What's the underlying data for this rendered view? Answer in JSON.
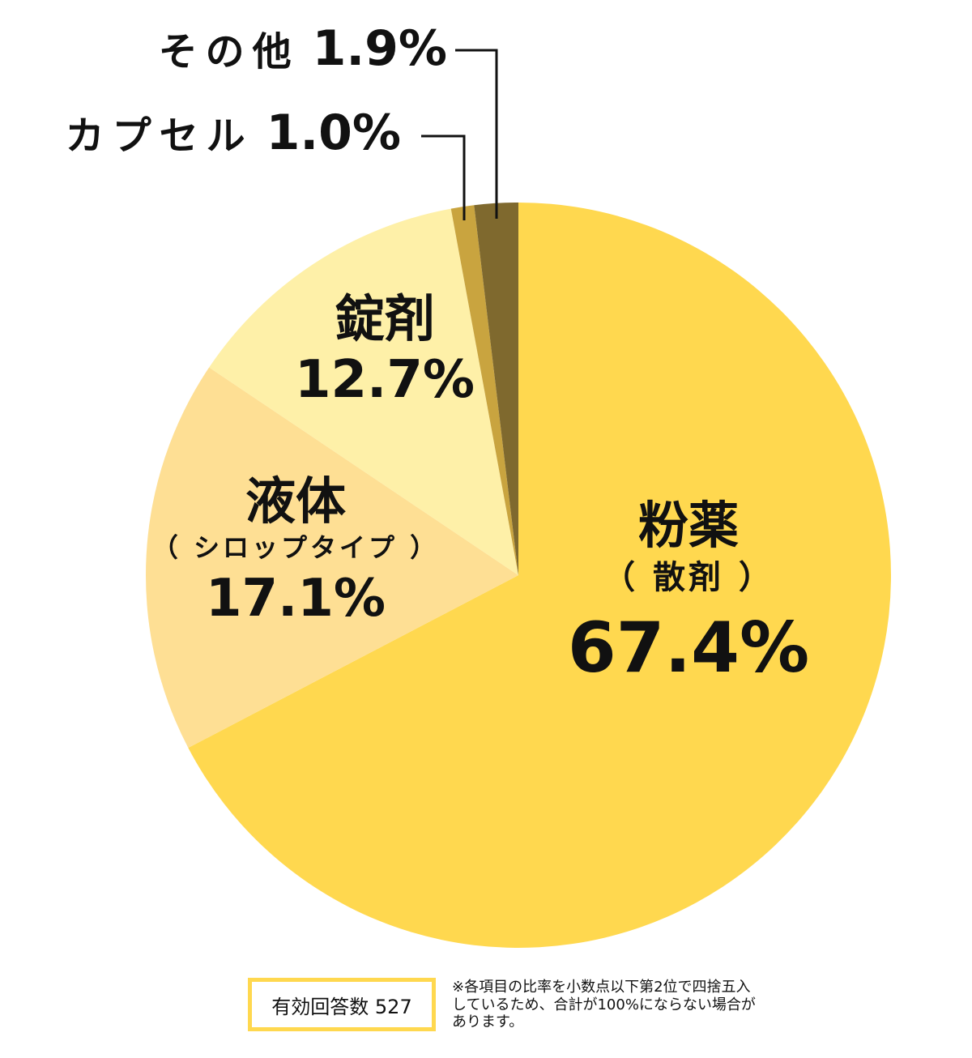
{
  "chart_data": {
    "type": "pie",
    "start": "top",
    "direction": "clockwise",
    "slices": [
      {
        "name": "粉薬",
        "sub": "（ 散剤 ）",
        "value": 67.4,
        "label": "67.4%",
        "color": "#FFD84F"
      },
      {
        "name": "液体",
        "sub": "（ シロップタイプ ）",
        "value": 17.1,
        "label": "17.1%",
        "color": "#FEDF94"
      },
      {
        "name": "錠剤",
        "value": 12.7,
        "label": "12.7%",
        "color": "#FEF0A8"
      },
      {
        "name": "カプセル",
        "value": 1.0,
        "label": "1.0%",
        "color": "#C9A43F"
      },
      {
        "name": "その他",
        "value": 1.9,
        "label": "1.9%",
        "color": "#7F692E"
      }
    ]
  },
  "footer": {
    "respondents": "有効回答数 527",
    "note": "※各項目の比率を小数点以下第2位で四捨五入しているため、合計が100%にならない場合があります。"
  }
}
